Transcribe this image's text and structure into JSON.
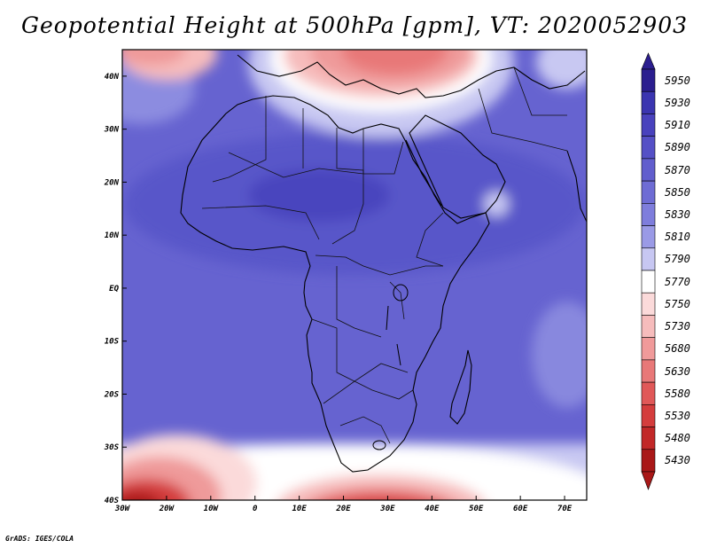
{
  "title": "Geopotential Height at 500hPa [gpm], VT: 2020052903",
  "credit": "GrADS: IGES/COLA",
  "map": {
    "lon_range": [
      -30,
      75
    ],
    "lat_range": [
      -40,
      45
    ],
    "x_ticks": [
      "30W",
      "20W",
      "10W",
      "0",
      "10E",
      "20E",
      "30E",
      "40E",
      "50E",
      "60E",
      "70E"
    ],
    "y_ticks": [
      "40N",
      "30N",
      "20N",
      "10N",
      "EQ",
      "10S",
      "20S",
      "30S",
      "40S"
    ]
  },
  "legend": {
    "levels": [
      5950,
      5930,
      5910,
      5890,
      5870,
      5850,
      5830,
      5810,
      5790,
      5770,
      5750,
      5730,
      5680,
      5630,
      5580,
      5530,
      5480,
      5430
    ],
    "colors": [
      "#2b1e8f",
      "#3b35b0",
      "#4942bd",
      "#5550c6",
      "#615ecd",
      "#6e6cd4",
      "#7e7ddc",
      "#9a9ae6",
      "#c7c7f2",
      "#ffffff",
      "#fbdada",
      "#f6bcbc",
      "#f09a9a",
      "#e87878",
      "#e05858",
      "#d43d3d",
      "#c22828",
      "#a91818"
    ]
  }
}
